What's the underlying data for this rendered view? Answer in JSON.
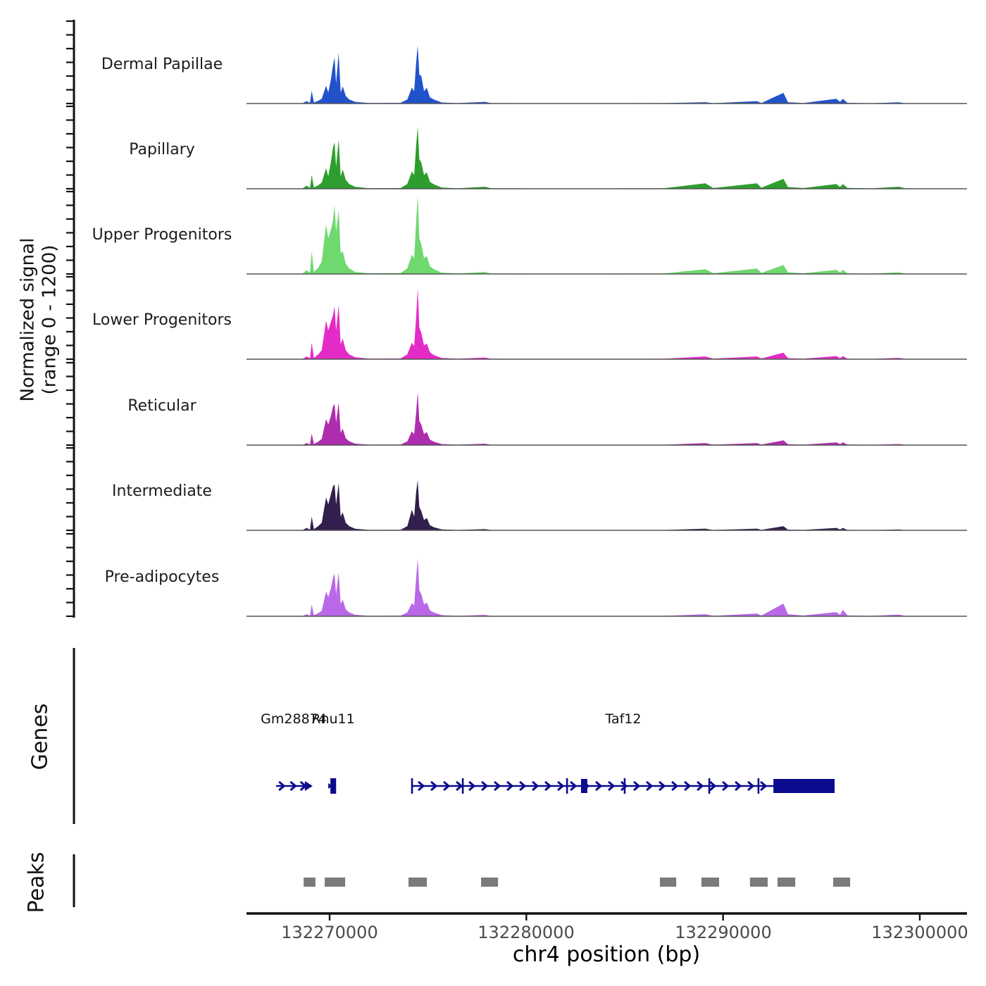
{
  "axes": {
    "x_label": "chr4 position (bp)",
    "x_ticks": [
      {
        "value": 132270000,
        "label": "132270000"
      },
      {
        "value": 132280000,
        "label": "132280000"
      },
      {
        "value": 132290000,
        "label": "132290000"
      },
      {
        "value": 132300000,
        "label": "132300000"
      }
    ],
    "xlim": [
      132265775,
      132302400
    ],
    "y_label": "Normalized signal\n(range 0 - 1200)",
    "ylim": [
      0,
      1200
    ]
  },
  "chart_data": {
    "type": "area",
    "title": "",
    "xlabel": "chr4 position (bp)",
    "ylabel": "Normalized signal (range 0 - 1200)",
    "xlim": [
      132265775,
      132302400
    ],
    "ylim_per_track": [
      0,
      1200
    ],
    "legend_position": "left-track-labels",
    "x": [
      132265800,
      132268600,
      132268830,
      132269000,
      132269090,
      132269200,
      132269420,
      132269600,
      132269820,
      132269930,
      132270060,
      132270170,
      132270250,
      132270330,
      132270460,
      132270560,
      132270670,
      132270820,
      132271000,
      132271300,
      132272000,
      132273600,
      132273950,
      132274180,
      132274300,
      132274400,
      132274480,
      132274560,
      132274660,
      132274800,
      132274940,
      132275100,
      132275300,
      132275700,
      132276500,
      132277900,
      132278200,
      132280500,
      132284000,
      132287000,
      132289100,
      132289500,
      132291720,
      132291950,
      132293070,
      132293300,
      132294100,
      132295760,
      132295950,
      132296090,
      132296320,
      132297500,
      132298950,
      132299250,
      132301000,
      132302400
    ],
    "series": [
      {
        "name": "Dermal Papillae",
        "color": "#2152cc",
        "values": [
          0,
          0,
          35,
          10,
          185,
          15,
          40,
          70,
          260,
          160,
          340,
          560,
          670,
          290,
          740,
          160,
          250,
          110,
          60,
          25,
          8,
          10,
          60,
          230,
          180,
          600,
          845,
          420,
          400,
          180,
          230,
          90,
          60,
          15,
          6,
          25,
          6,
          4,
          4,
          6,
          20,
          5,
          35,
          8,
          155,
          20,
          8,
          70,
          25,
          70,
          10,
          4,
          18,
          4,
          3,
          0
        ]
      },
      {
        "name": "Papillary",
        "color": "#2d9e2d",
        "values": [
          0,
          0,
          45,
          12,
          200,
          18,
          50,
          90,
          300,
          180,
          380,
          600,
          680,
          320,
          720,
          180,
          280,
          130,
          70,
          28,
          8,
          10,
          70,
          250,
          200,
          640,
          905,
          430,
          380,
          200,
          240,
          100,
          65,
          18,
          6,
          30,
          8,
          5,
          5,
          8,
          80,
          10,
          80,
          15,
          145,
          25,
          10,
          70,
          25,
          70,
          12,
          5,
          30,
          6,
          4,
          0
        ]
      },
      {
        "name": "Upper Progenitors",
        "color": "#6fd86f",
        "values": [
          0,
          0,
          55,
          15,
          330,
          30,
          90,
          180,
          720,
          520,
          640,
          770,
          1000,
          620,
          925,
          300,
          330,
          150,
          80,
          30,
          10,
          12,
          80,
          280,
          230,
          760,
          1140,
          520,
          430,
          230,
          260,
          110,
          70,
          20,
          8,
          30,
          8,
          5,
          5,
          8,
          70,
          10,
          80,
          15,
          130,
          25,
          10,
          60,
          20,
          60,
          10,
          5,
          25,
          5,
          4,
          0
        ]
      },
      {
        "name": "Lower Progenitors",
        "color": "#e52bc7",
        "values": [
          0,
          0,
          40,
          12,
          240,
          20,
          70,
          130,
          560,
          420,
          540,
          640,
          770,
          420,
          790,
          220,
          300,
          130,
          70,
          28,
          8,
          10,
          70,
          240,
          190,
          620,
          1030,
          460,
          380,
          200,
          230,
          100,
          60,
          18,
          6,
          25,
          6,
          4,
          4,
          6,
          40,
          8,
          40,
          10,
          95,
          15,
          8,
          45,
          15,
          45,
          8,
          4,
          20,
          5,
          4,
          0
        ]
      },
      {
        "name": "Reticular",
        "color": "#ae2dae",
        "values": [
          0,
          0,
          30,
          10,
          170,
          15,
          50,
          90,
          380,
          300,
          420,
          560,
          600,
          330,
          620,
          180,
          240,
          100,
          55,
          22,
          6,
          8,
          55,
          200,
          160,
          480,
          770,
          350,
          300,
          160,
          190,
          80,
          50,
          15,
          5,
          20,
          5,
          4,
          4,
          5,
          30,
          6,
          30,
          8,
          70,
          12,
          6,
          40,
          14,
          40,
          7,
          4,
          15,
          4,
          3,
          0
        ]
      },
      {
        "name": "Intermediate",
        "color": "#321f4d",
        "values": [
          0,
          0,
          35,
          10,
          200,
          18,
          60,
          110,
          480,
          380,
          520,
          640,
          670,
          380,
          690,
          200,
          260,
          110,
          60,
          24,
          6,
          8,
          60,
          300,
          200,
          560,
          730,
          340,
          280,
          150,
          180,
          75,
          45,
          14,
          5,
          18,
          5,
          4,
          4,
          5,
          25,
          5,
          25,
          7,
          60,
          10,
          6,
          35,
          12,
          35,
          6,
          3,
          12,
          3,
          3,
          0
        ]
      },
      {
        "name": "Pre-adipocytes",
        "color": "#b968e8",
        "values": [
          0,
          0,
          30,
          10,
          170,
          15,
          45,
          80,
          360,
          280,
          400,
          560,
          620,
          320,
          640,
          180,
          240,
          100,
          55,
          22,
          6,
          8,
          55,
          190,
          160,
          560,
          840,
          380,
          320,
          170,
          200,
          85,
          55,
          16,
          5,
          20,
          5,
          4,
          4,
          5,
          30,
          6,
          40,
          10,
          185,
          30,
          10,
          60,
          20,
          95,
          12,
          5,
          25,
          6,
          4,
          0
        ]
      }
    ]
  },
  "sections": {
    "genes_label": "Genes",
    "peaks_label": "Peaks"
  },
  "genes": {
    "color": "#0b0b8d",
    "items": [
      {
        "name": "Gm28874",
        "type": "arrow",
        "start": 132267280,
        "end": 132269100,
        "strand": "+"
      },
      {
        "name": "Rnu11",
        "type": "box",
        "start": 132270040,
        "end": 132270330
      },
      {
        "name": "Taf12",
        "type": "gene-model",
        "start": 132274190,
        "end": 132295670,
        "strand": "+",
        "exon_ticks": [
          132274190,
          132276770,
          132282070,
          132285000,
          132289300,
          132291800
        ],
        "exon_boxes": [
          {
            "start": 132282780,
            "end": 132283100
          },
          {
            "start": 132292560,
            "end": 132295670
          }
        ]
      }
    ]
  },
  "peaks": {
    "color": "#7a7a7a",
    "regions": [
      [
        132268680,
        132269280
      ],
      [
        132269750,
        132270790
      ],
      [
        132274010,
        132274940
      ],
      [
        132277700,
        132278560
      ],
      [
        132286790,
        132287620
      ],
      [
        132288900,
        132289800
      ],
      [
        132291370,
        132292270
      ],
      [
        132292770,
        132293670
      ],
      [
        132295600,
        132296460
      ]
    ]
  }
}
